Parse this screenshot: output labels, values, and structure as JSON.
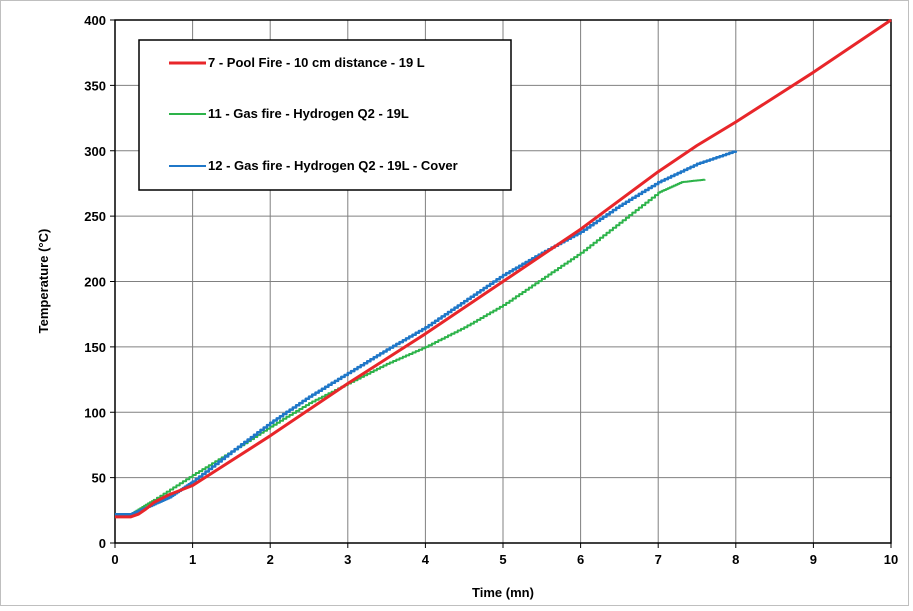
{
  "chart_data": {
    "type": "line",
    "xlabel": "Time (mn)",
    "ylabel": "Temperature (°C)",
    "xlim": [
      0,
      10
    ],
    "ylim": [
      0,
      400
    ],
    "x_ticks": [
      0,
      1,
      2,
      3,
      4,
      5,
      6,
      7,
      8,
      9,
      10
    ],
    "y_ticks": [
      0,
      50,
      100,
      150,
      200,
      250,
      300,
      350,
      400
    ],
    "grid": true,
    "legend_position": "top-left",
    "series": [
      {
        "name": "7 - Pool Fire - 10 cm distance - 19 L",
        "color": "#e8262a",
        "step": false,
        "x": [
          0,
          0.2,
          0.3,
          0.4,
          0.5,
          0.7,
          1,
          2,
          3,
          4,
          5,
          6,
          6.5,
          7,
          7.5,
          8,
          9,
          10
        ],
        "y": [
          20,
          20,
          22,
          26,
          31,
          37,
          44,
          82,
          122,
          160,
          200,
          240,
          262,
          284,
          304,
          322,
          360,
          400
        ]
      },
      {
        "name": "11 - Gas fire - Hydrogen Q2 - 19L",
        "color": "#2db34a",
        "step": true,
        "x": [
          0,
          0.2,
          0.5,
          1,
          1.5,
          2,
          2.5,
          3,
          3.5,
          4,
          4.5,
          5,
          5.5,
          6,
          6.5,
          7,
          7.3,
          7.6
        ],
        "y": [
          20,
          22,
          33,
          52,
          70,
          89,
          107,
          122,
          137,
          150,
          165,
          182,
          202,
          222,
          245,
          268,
          276,
          278
        ]
      },
      {
        "name": "12 - Gas fire - Hydrogen Q2 - 19L - Cover",
        "color": "#1f77c8",
        "step": true,
        "x": [
          0,
          0.2,
          0.4,
          0.7,
          1,
          1.5,
          2,
          2.5,
          3,
          3.5,
          4,
          4.5,
          5,
          5.5,
          6,
          6.5,
          7,
          7.5,
          8
        ],
        "y": [
          22,
          22,
          27,
          35,
          47,
          70,
          92,
          112,
          130,
          148,
          165,
          185,
          205,
          222,
          238,
          258,
          276,
          290,
          300
        ]
      }
    ]
  }
}
